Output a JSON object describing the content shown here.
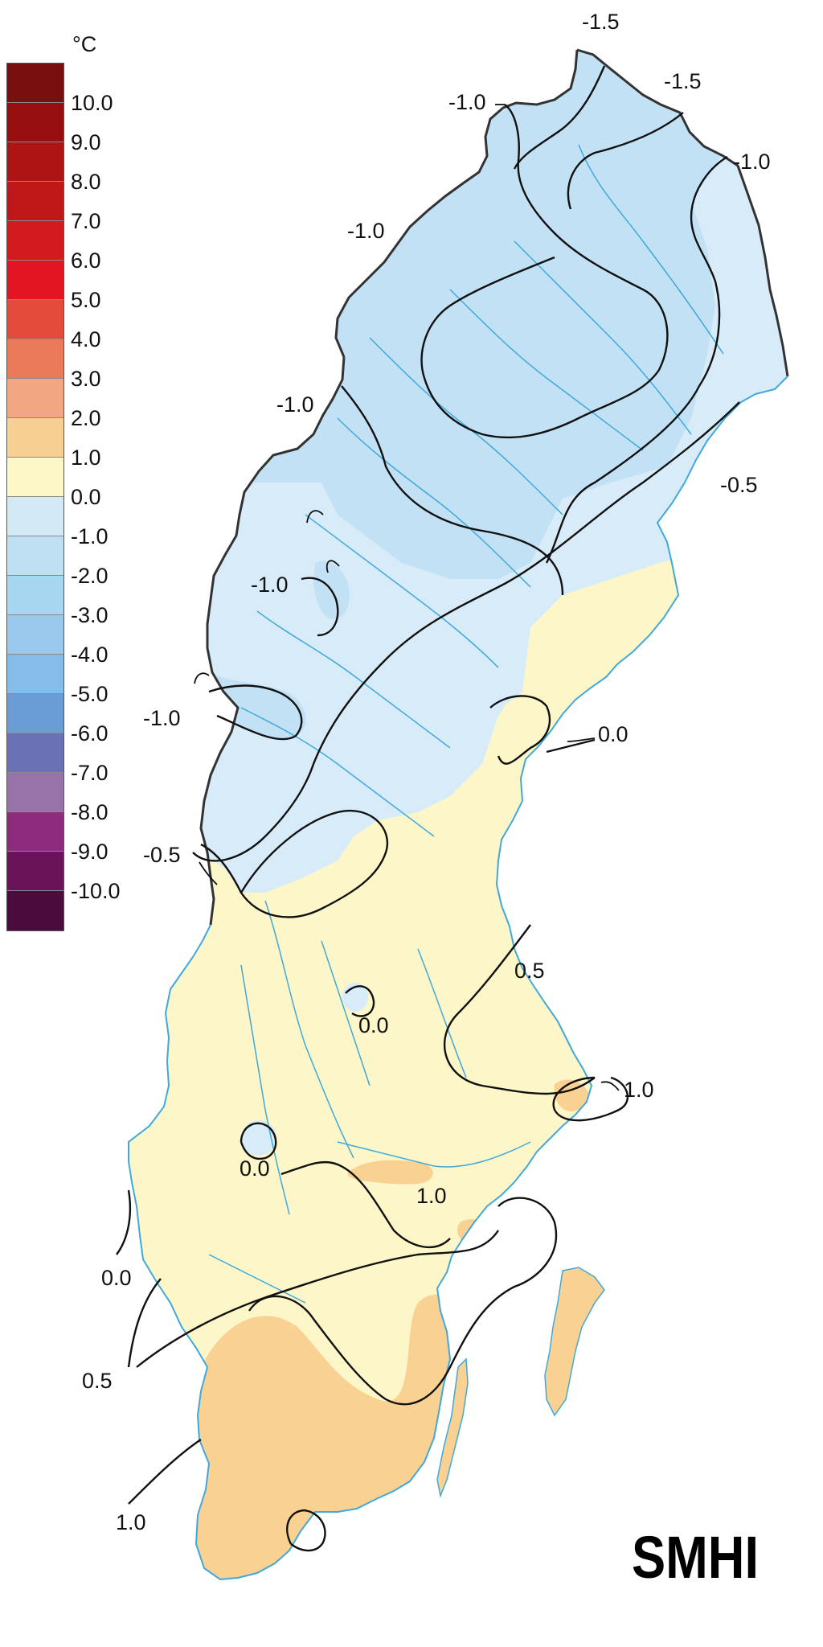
{
  "legend": {
    "unit": "°C",
    "labels": [
      "10.0",
      "9.0",
      "8.0",
      "7.0",
      "6.0",
      "5.0",
      "4.0",
      "3.0",
      "2.0",
      "1.0",
      "0.0",
      "-1.0",
      "-2.0",
      "-3.0",
      "-4.0",
      "-5.0",
      "-6.0",
      "-7.0",
      "-8.0",
      "-9.0",
      "-10.0"
    ],
    "colors": [
      "#7a0f0f",
      "#961010",
      "#ad1414",
      "#c01818",
      "#d31a1f",
      "#e41523",
      "#e54b3a",
      "#ea7a5a",
      "#f3a780",
      "#f8cf92",
      "#fdf6c6",
      "#d4e9f6",
      "#bfe0f3",
      "#a7d6f1",
      "#9bc9ee",
      "#84bde9",
      "#6a9cd6",
      "#6a72b5",
      "#9773a9",
      "#8f2b7f",
      "#6a1358",
      "#4b0b3c"
    ]
  },
  "regions": {
    "north_fill": "#c2e1f4",
    "central_fill": "#d7ebf8",
    "south_fill": "#fdf6c8",
    "warm_fill": "#f9d293",
    "river_color": "#3fa9dc",
    "border_color": "#333333"
  },
  "isolines": [
    {
      "label": "-1.5"
    },
    {
      "label": "-1.5"
    },
    {
      "label": "-1.0"
    },
    {
      "label": "-1.0"
    },
    {
      "label": "-1.0"
    },
    {
      "label": "-1.0"
    },
    {
      "label": "-1.0"
    },
    {
      "label": "-1.0"
    },
    {
      "label": "-0.5"
    },
    {
      "label": "-0.5"
    },
    {
      "label": "0.0"
    },
    {
      "label": "0.0"
    },
    {
      "label": "0.0"
    },
    {
      "label": "0.0"
    },
    {
      "label": "0.5"
    },
    {
      "label": "0.5"
    },
    {
      "label": "1.0"
    },
    {
      "label": "1.0"
    },
    {
      "label": "1.0"
    }
  ],
  "logo": {
    "text": "SMHI"
  }
}
